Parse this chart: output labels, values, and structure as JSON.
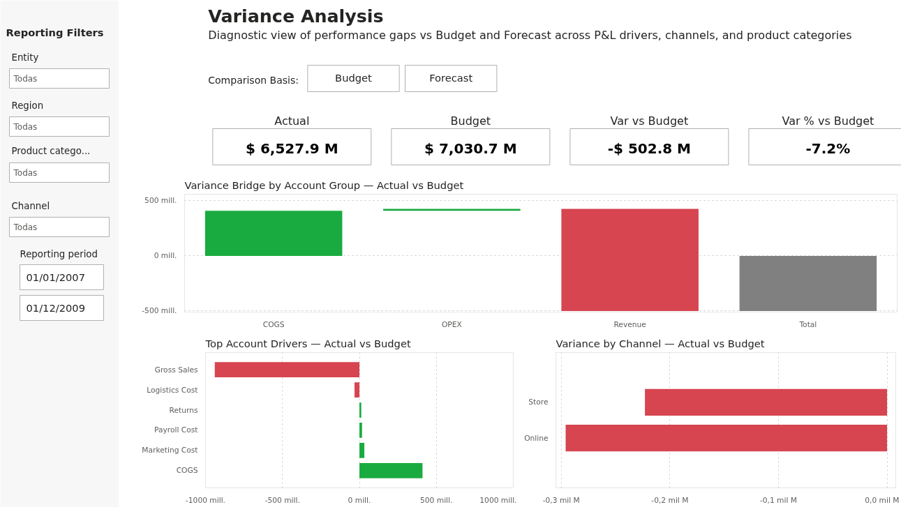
{
  "chart_data": [
    {
      "type": "other",
      "title": "Reporting Filters",
      "annotations": [
        "Entity",
        "Todas",
        "Region",
        "Todas",
        "Product catego...",
        "Todas",
        "Channel",
        "Todas",
        "Reporting period",
        "01/01/2007",
        "01/12/2009"
      ]
    },
    {
      "type": "other",
      "title": "Variance Analysis",
      "subtitle": "Diagnostic view of performance gaps vs Budget and Forecast across P&L drivers, channels, and product categories",
      "annotations": [
        "Comparison Basis:",
        "Budget",
        "Forecast"
      ]
    },
    {
      "type": "other",
      "annotations": [
        "Actual",
        "$ 6,527.9 M",
        "Budget",
        "$ 7,030.7 M",
        "Var vs Budget",
        "-$ 502.8 M",
        "Var % vs Budget",
        "-7.2%"
      ]
    },
    {
      "type": "bar",
      "title": "Variance Bridge by Account Group — Actual vs Budget",
      "categories": [
        "COGS",
        "OPEX",
        "Revenue",
        "Total"
      ],
      "values": [
        410,
        17,
        -928,
        -501
      ],
      "base": [
        0,
        410,
        427,
        0
      ],
      "colors": [
        "#1aab40",
        "#1aab40",
        "#d64550",
        "#808080"
      ],
      "ylim": [
        -510,
        560
      ],
      "yticks": [
        {
          "value": -500,
          "label": "-500 mill."
        },
        {
          "value": 0,
          "label": "0 mill."
        },
        {
          "value": 500,
          "label": "500 mill."
        }
      ],
      "grid": "y"
    },
    {
      "type": "bar",
      "orientation": "horizontal",
      "title": "Top Account Drivers — Actual vs Budget",
      "categories": [
        "Gross Sales",
        "Logistics Cost",
        "Returns",
        "Payroll Cost",
        "Marketing Cost",
        "COGS"
      ],
      "values": [
        -940,
        -32,
        12,
        17,
        32,
        410
      ],
      "colors": [
        "#d64550",
        "#d64550",
        "#1aab40",
        "#1aab40",
        "#1aab40",
        "#1aab40"
      ],
      "xlim": [
        -1000,
        1000
      ],
      "xticks": [
        {
          "value": -1000,
          "label": "-1000 mill."
        },
        {
          "value": -500,
          "label": "-500 mill."
        },
        {
          "value": 0,
          "label": "0 mill."
        },
        {
          "value": 500,
          "label": "500 mill."
        },
        {
          "value": 1000,
          "label": "1000 mill."
        }
      ],
      "grid": "x"
    },
    {
      "type": "bar",
      "orientation": "horizontal",
      "title": "Variance by Channel — Actual vs Budget",
      "categories": [
        "Store",
        "Online"
      ],
      "values": [
        -0.223,
        -0.296
      ],
      "colors": [
        "#d64550",
        "#d64550"
      ],
      "xlim": [
        -0.305,
        0.008
      ],
      "xticks": [
        {
          "value": -0.3,
          "label": "-0,3 mil M"
        },
        {
          "value": -0.2,
          "label": "-0,2 mil M"
        },
        {
          "value": -0.1,
          "label": "-0,1 mil M"
        },
        {
          "value": 0,
          "label": "0,0 mil M"
        }
      ],
      "grid": "x"
    }
  ]
}
